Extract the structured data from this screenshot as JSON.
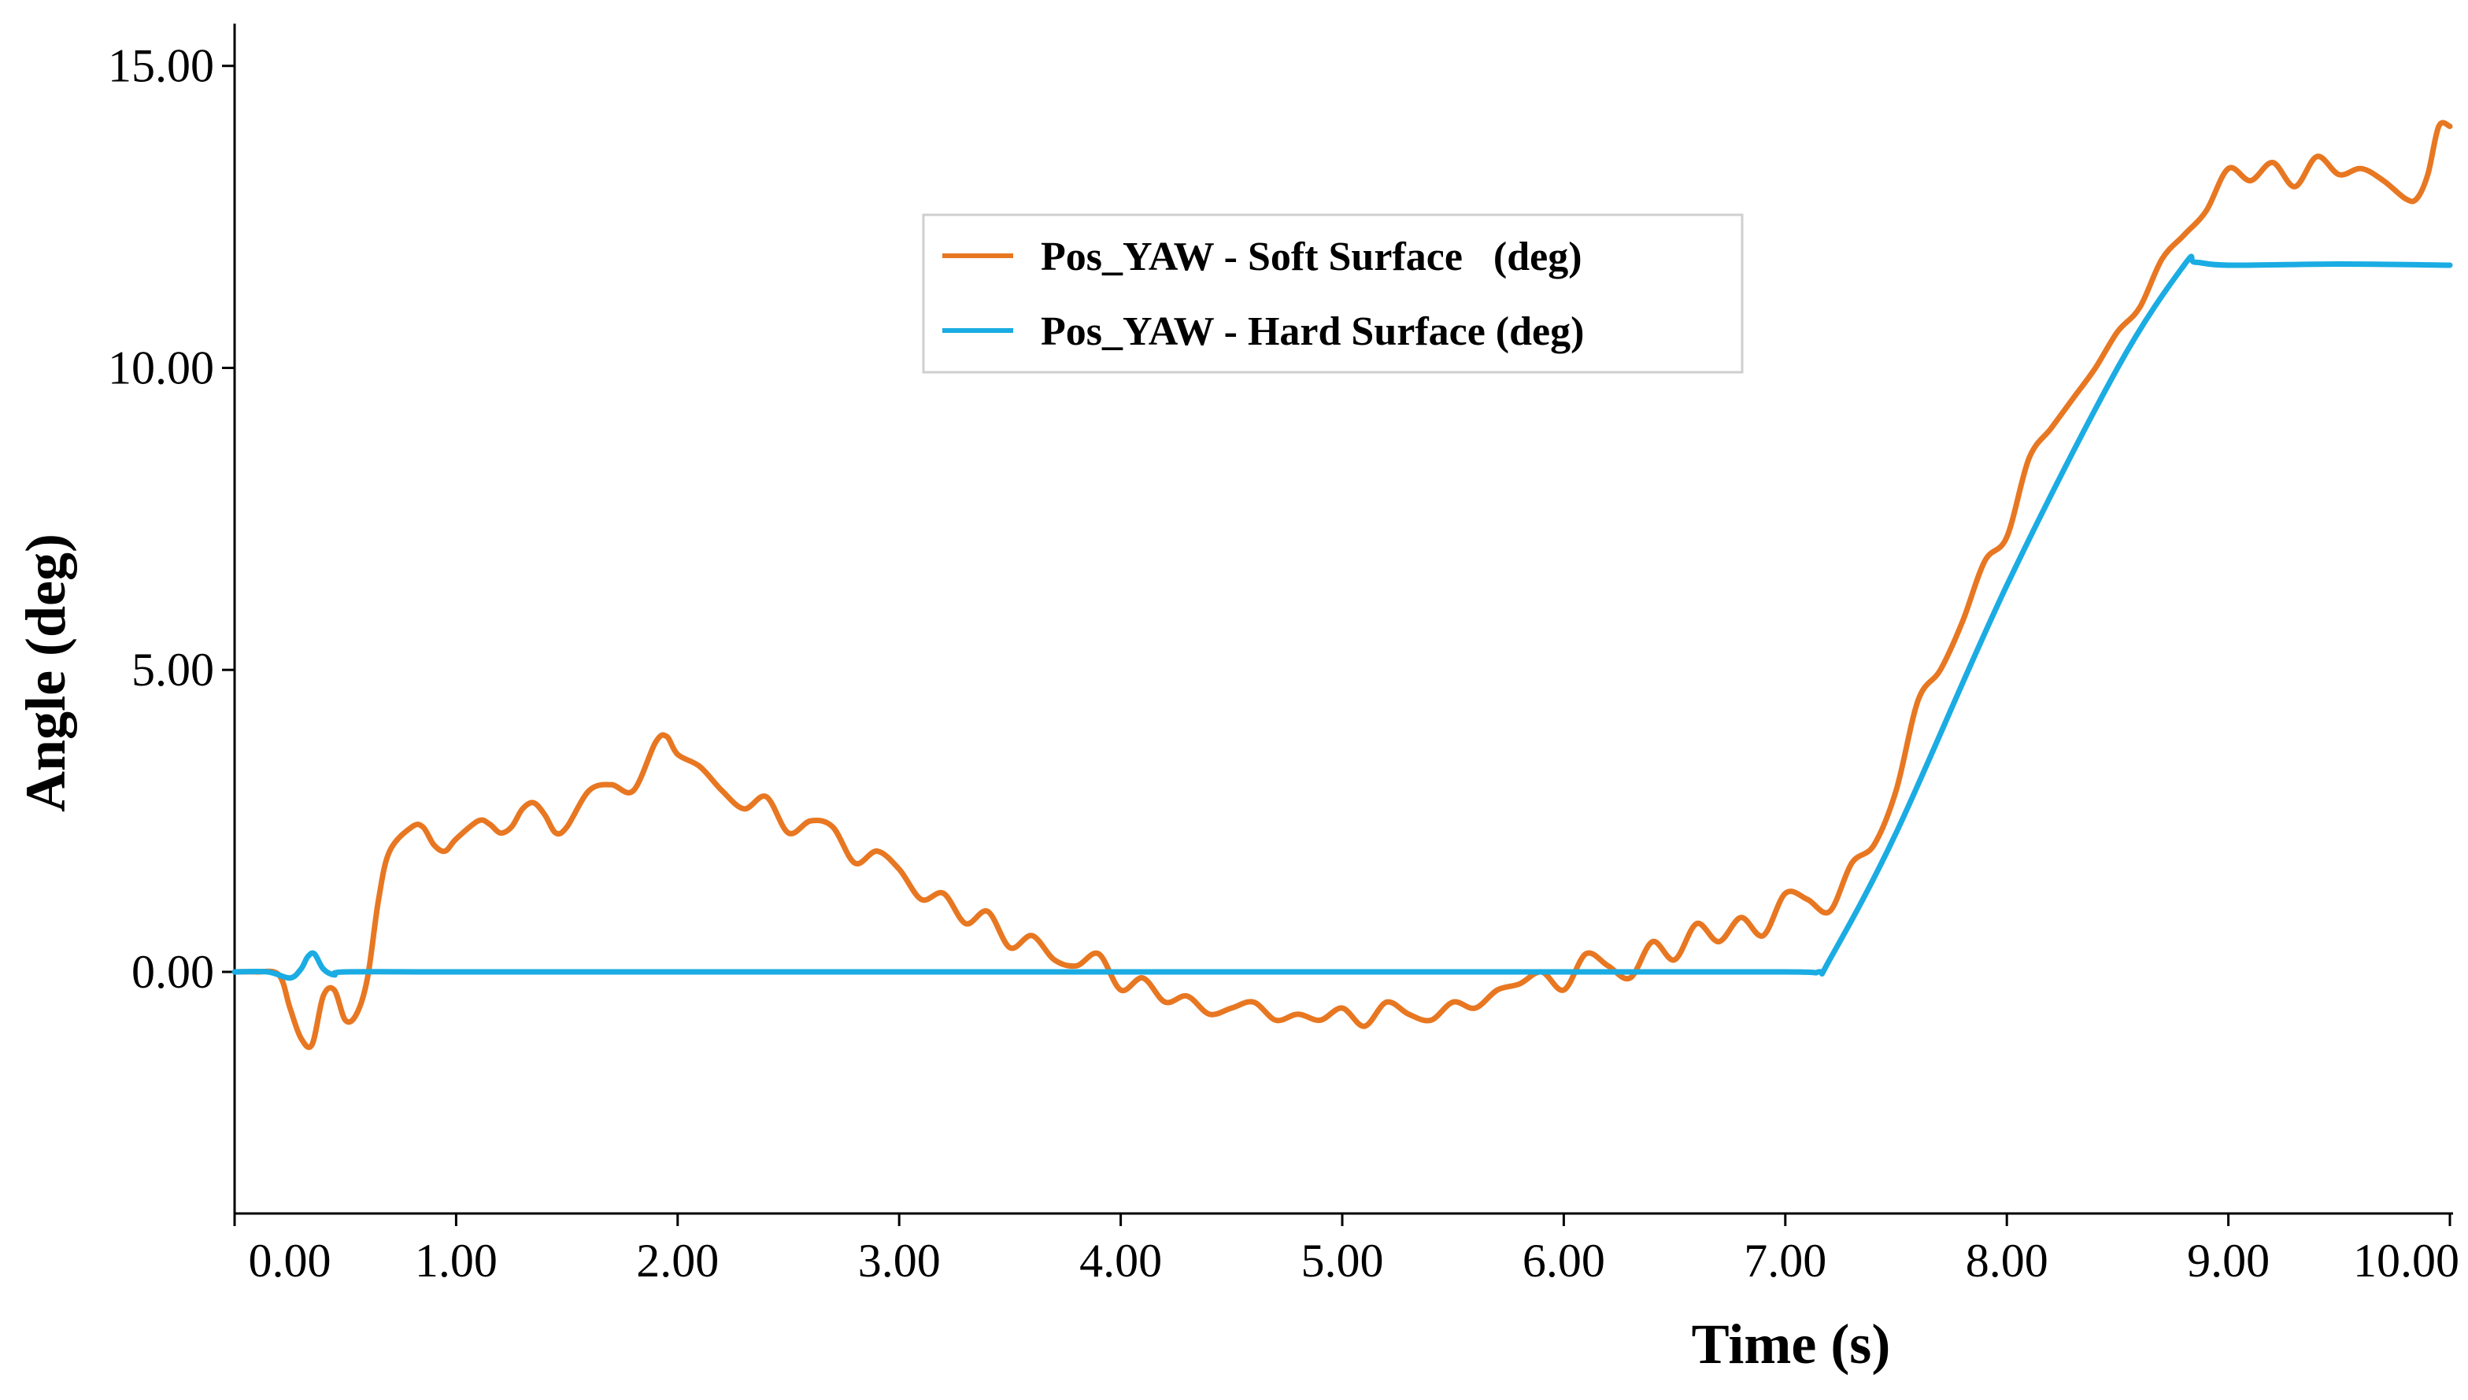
{
  "chart_data": {
    "type": "line",
    "title": "",
    "xlabel": "Time (s)",
    "ylabel": "Angle (deg)",
    "xlim": [
      0,
      10
    ],
    "ylim": [
      -4,
      15.7
    ],
    "xticks": [
      0,
      1,
      2,
      3,
      4,
      5,
      6,
      7,
      8,
      9,
      10
    ],
    "xtick_labels": [
      "0.00",
      "1.00",
      "2.00",
      "3.00",
      "4.00",
      "5.00",
      "6.00",
      "7.00",
      "8.00",
      "9.00",
      "10.00"
    ],
    "yticks": [
      0,
      5,
      10,
      15
    ],
    "ytick_labels": [
      "0.00",
      "5.00",
      "10.00",
      "15.00"
    ],
    "grid": false,
    "legend_position": "top-center",
    "series": [
      {
        "name": "Pos_YAW - Soft Surface   (deg)",
        "color": "#E87722",
        "x": [
          0,
          0.1,
          0.2,
          0.25,
          0.3,
          0.35,
          0.4,
          0.45,
          0.5,
          0.55,
          0.6,
          0.65,
          0.7,
          0.8,
          0.85,
          0.9,
          0.95,
          1.0,
          1.1,
          1.15,
          1.2,
          1.25,
          1.3,
          1.35,
          1.4,
          1.45,
          1.5,
          1.6,
          1.7,
          1.8,
          1.9,
          1.95,
          2.0,
          2.1,
          2.2,
          2.3,
          2.4,
          2.5,
          2.6,
          2.7,
          2.8,
          2.9,
          3.0,
          3.1,
          3.2,
          3.3,
          3.4,
          3.5,
          3.6,
          3.7,
          3.8,
          3.9,
          4.0,
          4.1,
          4.2,
          4.3,
          4.4,
          4.5,
          4.6,
          4.7,
          4.8,
          4.9,
          5.0,
          5.1,
          5.2,
          5.3,
          5.4,
          5.5,
          5.6,
          5.7,
          5.8,
          5.9,
          6.0,
          6.1,
          6.2,
          6.3,
          6.4,
          6.5,
          6.6,
          6.7,
          6.8,
          6.9,
          7.0,
          7.1,
          7.2,
          7.3,
          7.4,
          7.5,
          7.6,
          7.7,
          7.8,
          7.9,
          8.0,
          8.1,
          8.2,
          8.3,
          8.4,
          8.5,
          8.6,
          8.7,
          8.8,
          8.9,
          9.0,
          9.1,
          9.2,
          9.3,
          9.4,
          9.5,
          9.6,
          9.7,
          9.8,
          9.85,
          9.9,
          9.95,
          10.0
        ],
        "values": [
          0,
          0,
          -0.05,
          -0.6,
          -1.1,
          -1.2,
          -0.4,
          -0.3,
          -0.8,
          -0.7,
          -0.1,
          1.2,
          2.0,
          2.4,
          2.4,
          2.1,
          2.0,
          2.2,
          2.5,
          2.45,
          2.3,
          2.4,
          2.7,
          2.8,
          2.6,
          2.3,
          2.4,
          3.0,
          3.1,
          3.0,
          3.8,
          3.9,
          3.6,
          3.4,
          3.0,
          2.7,
          2.9,
          2.3,
          2.5,
          2.4,
          1.8,
          2.0,
          1.7,
          1.2,
          1.3,
          0.8,
          1.0,
          0.4,
          0.6,
          0.2,
          0.1,
          0.3,
          -0.3,
          -0.1,
          -0.5,
          -0.4,
          -0.7,
          -0.6,
          -0.5,
          -0.8,
          -0.7,
          -0.8,
          -0.6,
          -0.9,
          -0.5,
          -0.7,
          -0.8,
          -0.5,
          -0.6,
          -0.3,
          -0.2,
          0.0,
          -0.3,
          0.3,
          0.1,
          -0.1,
          0.5,
          0.2,
          0.8,
          0.5,
          0.9,
          0.6,
          1.3,
          1.2,
          1.0,
          1.8,
          2.1,
          3.0,
          4.5,
          5.0,
          5.8,
          6.8,
          7.2,
          8.5,
          9.0,
          9.5,
          10.0,
          10.6,
          11.0,
          11.8,
          12.2,
          12.6,
          13.3,
          13.1,
          13.4,
          13.0,
          13.5,
          13.2,
          13.3,
          13.1,
          12.8,
          12.8,
          13.2,
          14.0,
          14.0
        ]
      },
      {
        "name": "Pos_YAW - Hard Surface (deg)",
        "color": "#1AACE3",
        "x": [
          0,
          0.15,
          0.25,
          0.3,
          0.33,
          0.36,
          0.4,
          0.45,
          0.5,
          1,
          2,
          3,
          4,
          5,
          6,
          7,
          7.15,
          7.2,
          7.5,
          8.0,
          8.5,
          8.8,
          8.85,
          9.0,
          9.5,
          10.0
        ],
        "values": [
          0,
          0,
          -0.1,
          0.05,
          0.25,
          0.3,
          0.05,
          -0.05,
          0,
          0,
          0,
          0,
          0,
          0,
          0,
          0,
          0,
          0.2,
          2.3,
          6.4,
          10.0,
          11.7,
          11.75,
          11.7,
          11.72,
          11.7
        ]
      }
    ]
  }
}
